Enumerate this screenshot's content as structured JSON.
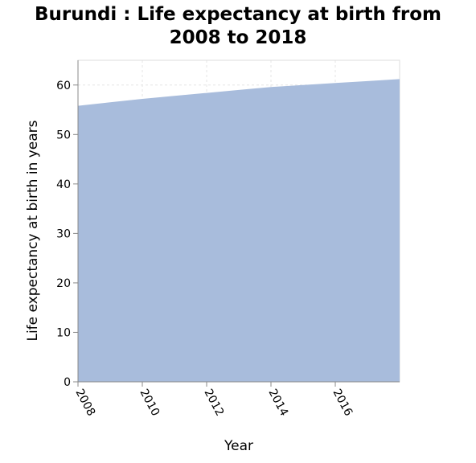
{
  "chart_data": {
    "type": "area",
    "title_lines": [
      "Burundi : Life expectancy at birth from",
      "2008 to 2018"
    ],
    "xlabel": "Year",
    "ylabel": "Life expectancy at birth in years",
    "x": [
      2008,
      2009,
      2010,
      2011,
      2012,
      2013,
      2014,
      2015,
      2016,
      2017,
      2018
    ],
    "values": [
      55.8,
      56.5,
      57.2,
      57.8,
      58.4,
      59.0,
      59.6,
      60.0,
      60.4,
      60.8,
      61.2
    ],
    "xlim": [
      2008,
      2018
    ],
    "ylim": [
      0,
      65
    ],
    "x_ticks": [
      "2008",
      "2010",
      "2012",
      "2014",
      "2016"
    ],
    "y_ticks": [
      "0",
      "10",
      "20",
      "30",
      "40",
      "50",
      "60"
    ],
    "grid": true,
    "fill_color": "#a8bcdc"
  }
}
